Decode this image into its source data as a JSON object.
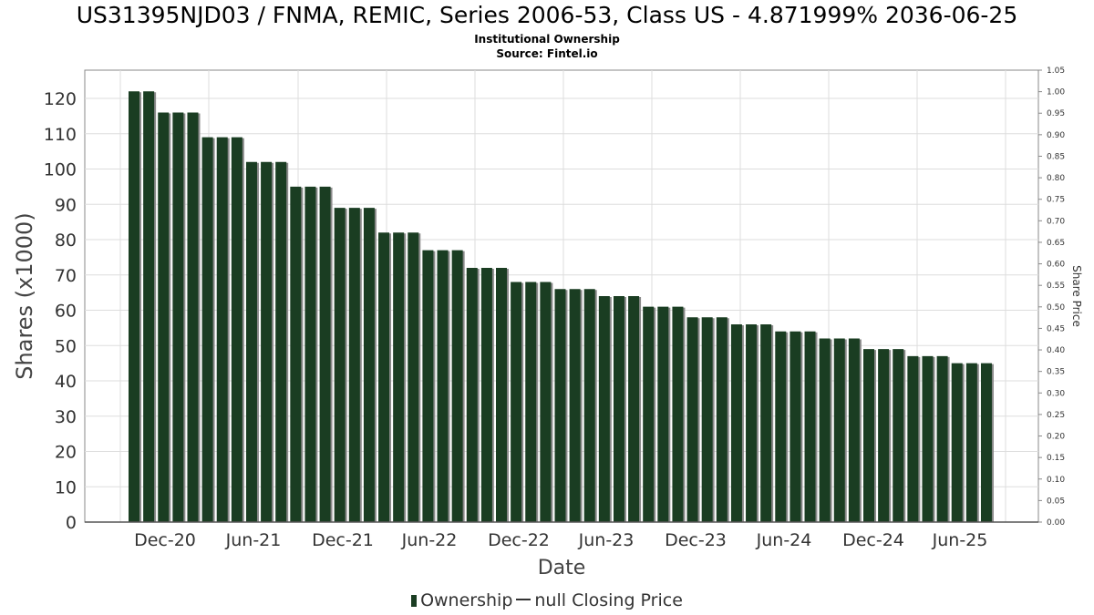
{
  "chart_data": {
    "type": "bar",
    "title": "US31395NJD03 / FNMA, REMIC, Series 2006-53, Class US - 4.871999% 2036-06-25",
    "subtitle": "Institutional Ownership",
    "source": "Source: Fintel.io",
    "xlabel": "Date",
    "ylabel": "Shares (x1000)",
    "y2label": "Share Price",
    "ylim": [
      0,
      128
    ],
    "y2lim": [
      0,
      1.05
    ],
    "yticks": [
      0,
      10,
      20,
      30,
      40,
      50,
      60,
      70,
      80,
      90,
      100,
      110,
      120
    ],
    "y2ticks": [
      "0.00",
      "0.05",
      "0.10",
      "0.15",
      "0.20",
      "0.25",
      "0.30",
      "0.35",
      "0.40",
      "0.45",
      "0.50",
      "0.55",
      "0.60",
      "0.65",
      "0.70",
      "0.75",
      "0.80",
      "0.85",
      "0.90",
      "0.95",
      "1.00",
      "1.05"
    ],
    "xticks": [
      "Dec-20",
      "Jun-21",
      "Dec-21",
      "Jun-22",
      "Dec-22",
      "Jun-23",
      "Dec-23",
      "Jun-24",
      "Dec-24",
      "Jun-25"
    ],
    "grid": true,
    "legend_position": "bottom",
    "colors": {
      "bar": "#1a3d22",
      "bar_shadow": "#8a8a8a",
      "grid": "#dddddd",
      "axis": "#888888"
    },
    "series": [
      {
        "name": "Ownership",
        "values": [
          122,
          122,
          116,
          116,
          116,
          109,
          109,
          109,
          102,
          102,
          102,
          95,
          95,
          95,
          89,
          89,
          89,
          82,
          82,
          82,
          77,
          77,
          77,
          72,
          72,
          72,
          68,
          68,
          68,
          66,
          66,
          66,
          64,
          64,
          64,
          61,
          61,
          61,
          58,
          58,
          58,
          56,
          56,
          56,
          54,
          54,
          54,
          52,
          52,
          52,
          49,
          49,
          49,
          47,
          47,
          47,
          45,
          45,
          45
        ]
      }
    ]
  },
  "legend": {
    "ownership_label": "Ownership",
    "price_label": "null Closing Price"
  }
}
